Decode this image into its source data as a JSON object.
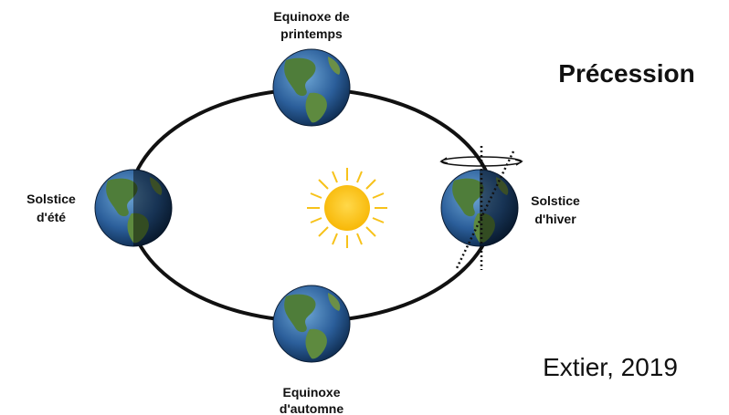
{
  "title": "Précession",
  "credit": "Extier, 2019",
  "nodes": [
    {
      "label": [
        "Equinoxe de",
        "printemps"
      ]
    },
    {
      "label": [
        "Solstice",
        "d'été"
      ]
    },
    {
      "label": [
        "Equinoxe",
        "d'automne"
      ]
    },
    {
      "label": [
        "Solstice",
        "d'hiver"
      ]
    }
  ]
}
